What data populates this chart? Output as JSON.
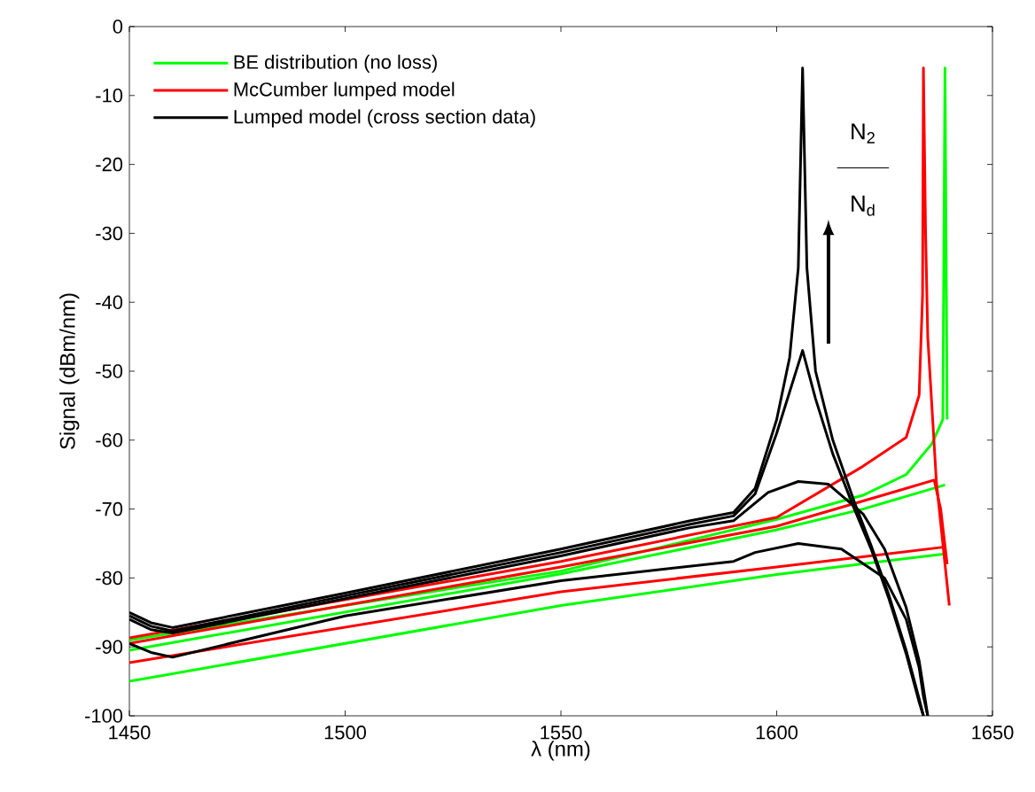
{
  "chart_data": {
    "type": "line",
    "xlabel": "λ (nm)",
    "ylabel": "Signal (dBm/nm)",
    "xlim": [
      1450,
      1650
    ],
    "ylim": [
      -100,
      0
    ],
    "xticks": [
      1450,
      1500,
      1550,
      1600,
      1650
    ],
    "yticks": [
      -100,
      -90,
      -80,
      -70,
      -60,
      -50,
      -40,
      -30,
      -20,
      -10,
      0
    ],
    "grid": false,
    "legend": "top left",
    "marker": "none",
    "line_style": "solid",
    "annotations": [
      "N$_{2}$",
      "N$_{d}$"
    ],
    "series": [
      {
        "name": "BE distribution (no loss)",
        "color": "#00ff00",
        "x": [
          1450,
          1550,
          1600,
          1639
        ],
        "values": [
          -95,
          -84,
          -79.5,
          -76.5
        ]
      },
      {
        "color": "#00ff00",
        "x": [
          1450,
          1550,
          1600,
          1620,
          1639
        ],
        "values": [
          -90.5,
          -79.4,
          -73,
          -70,
          -66.5
        ]
      },
      {
        "color": "#00ff00",
        "x": [
          1450,
          1550,
          1600,
          1620,
          1630,
          1636,
          1638.5,
          1639,
          1639.5
        ],
        "values": [
          -89,
          -79,
          -71.5,
          -68,
          -65,
          -60.5,
          -57,
          -6,
          -57
        ]
      },
      {
        "name": "McCumber lumped model",
        "color": "#ff0000",
        "x": [
          1450,
          1550,
          1600,
          1639
        ],
        "values": [
          -92.3,
          -82,
          -78.4,
          -75.5
        ]
      },
      {
        "color": "#ff0000",
        "x": [
          1450,
          1550,
          1600,
          1630,
          1636.5,
          1638,
          1639.5
        ],
        "values": [
          -89.5,
          -78.4,
          -72.5,
          -67,
          -65.8,
          -70,
          -78
        ]
      },
      {
        "color": "#ff0000",
        "x": [
          1450,
          1550,
          1600,
          1620,
          1630,
          1633,
          1633.8,
          1634,
          1634.5,
          1635,
          1637,
          1640
        ],
        "values": [
          -88.7,
          -77.6,
          -71.2,
          -63.8,
          -59.6,
          -53.5,
          -39,
          -6,
          -30,
          -45,
          -66,
          -84
        ]
      },
      {
        "name": "Lumped model (cross section data)",
        "color": "#000000",
        "x": [
          1450,
          1455,
          1460,
          1500,
          1550,
          1590,
          1595,
          1605,
          1615,
          1625,
          1630,
          1633,
          1634,
          1635
        ],
        "values": [
          -89.5,
          -90.8,
          -91.5,
          -85.5,
          -80.4,
          -77.6,
          -76.3,
          -75,
          -75.8,
          -80,
          -86,
          -93,
          -97.2,
          -100
        ]
      },
      {
        "color": "#000000",
        "x": [
          1450,
          1455,
          1460,
          1500,
          1550,
          1580,
          1590,
          1598,
          1605,
          1612,
          1620,
          1625,
          1630,
          1633,
          1635
        ],
        "values": [
          -86,
          -87.5,
          -88,
          -83,
          -76.8,
          -72.7,
          -71.7,
          -67.6,
          -66,
          -66.4,
          -70.7,
          -75.8,
          -84.3,
          -92,
          -100
        ]
      },
      {
        "color": "#000000",
        "x": [
          1450,
          1455,
          1460,
          1500,
          1550,
          1580,
          1590,
          1595,
          1600,
          1603,
          1606,
          1609,
          1613,
          1618,
          1622,
          1626,
          1630,
          1633,
          1634
        ],
        "values": [
          -85.5,
          -87,
          -87.7,
          -82.6,
          -76.3,
          -72.2,
          -71,
          -67.8,
          -59,
          -53,
          -47,
          -54,
          -62,
          -70,
          -76,
          -83,
          -91,
          -98,
          -100
        ]
      },
      {
        "color": "#000000",
        "x": [
          1450,
          1455,
          1460,
          1500,
          1550,
          1580,
          1590,
          1595,
          1600,
          1603,
          1605,
          1606,
          1607,
          1609,
          1613,
          1618,
          1622,
          1626,
          1630,
          1633,
          1634
        ],
        "values": [
          -85,
          -86.5,
          -87.2,
          -82.2,
          -75.8,
          -71.7,
          -70.5,
          -67,
          -57,
          -48,
          -35,
          -6,
          -35,
          -50,
          -60,
          -69,
          -75.5,
          -82.5,
          -90.5,
          -97.5,
          -100
        ]
      }
    ]
  }
}
